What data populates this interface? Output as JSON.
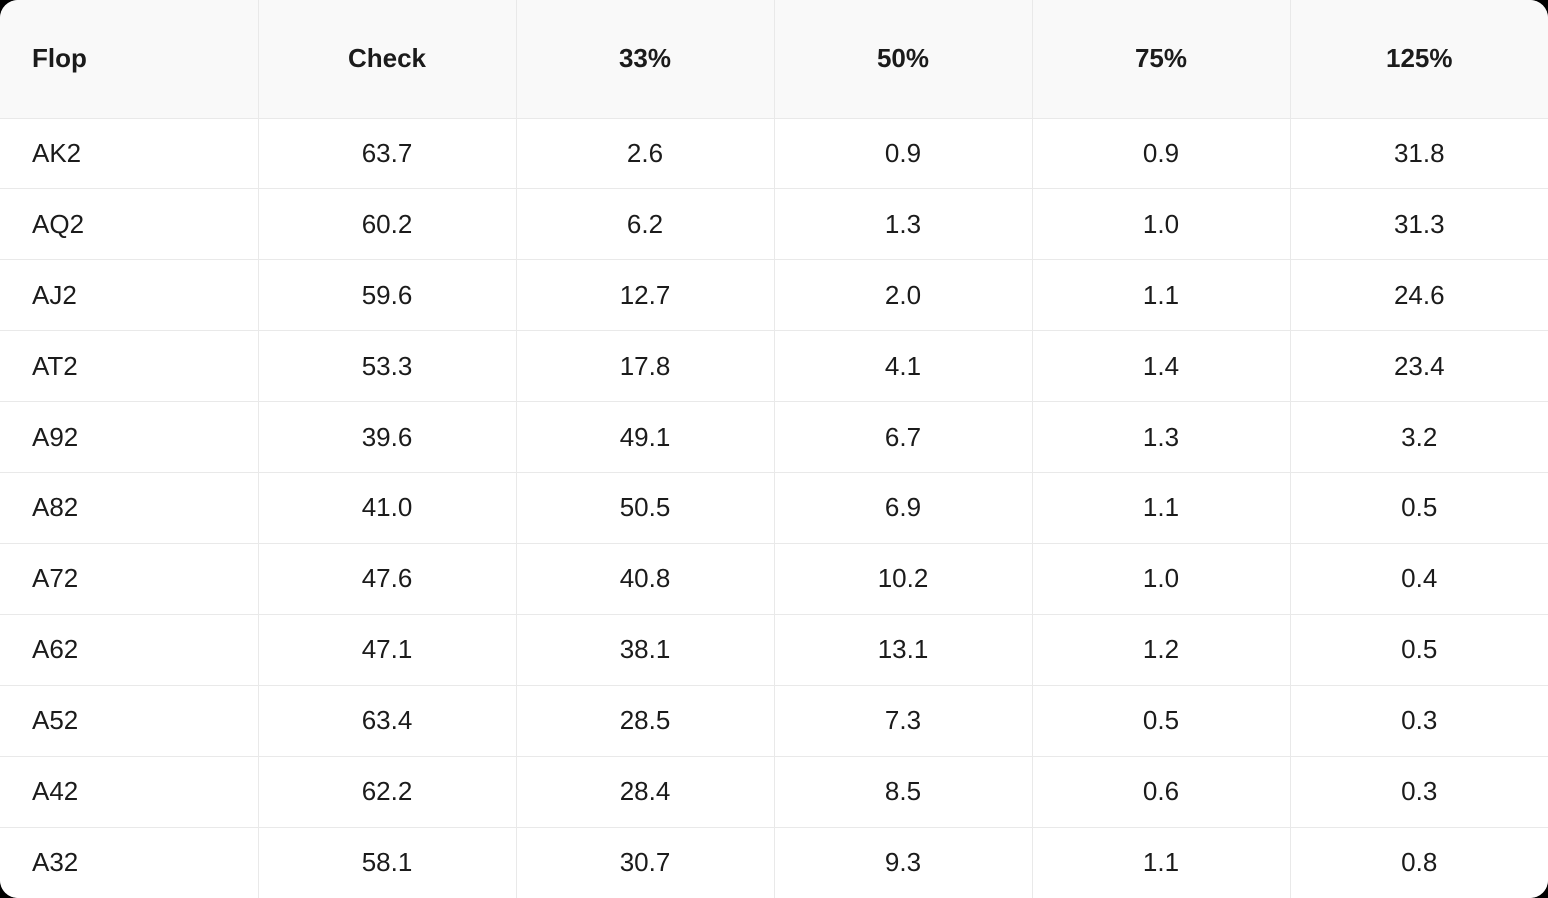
{
  "chart_data": {
    "type": "table",
    "columns": [
      "Flop",
      "Check",
      "33%",
      "50%",
      "75%",
      "125%"
    ],
    "rows": [
      {
        "flop": "AK2",
        "values": [
          63.7,
          2.6,
          0.9,
          0.9,
          31.8
        ]
      },
      {
        "flop": "AQ2",
        "values": [
          60.2,
          6.2,
          1.3,
          1.0,
          31.3
        ]
      },
      {
        "flop": "AJ2",
        "values": [
          59.6,
          12.7,
          2.0,
          1.1,
          24.6
        ]
      },
      {
        "flop": "AT2",
        "values": [
          53.3,
          17.8,
          4.1,
          1.4,
          23.4
        ]
      },
      {
        "flop": "A92",
        "values": [
          39.6,
          49.1,
          6.7,
          1.3,
          3.2
        ]
      },
      {
        "flop": "A82",
        "values": [
          41.0,
          50.5,
          6.9,
          1.1,
          0.5
        ]
      },
      {
        "flop": "A72",
        "values": [
          47.6,
          40.8,
          10.2,
          1.0,
          0.4
        ]
      },
      {
        "flop": "A62",
        "values": [
          47.1,
          38.1,
          13.1,
          1.2,
          0.5
        ]
      },
      {
        "flop": "A52",
        "values": [
          63.4,
          28.5,
          7.3,
          0.5,
          0.3
        ]
      },
      {
        "flop": "A42",
        "values": [
          62.2,
          28.4,
          8.5,
          0.6,
          0.3
        ]
      },
      {
        "flop": "A32",
        "values": [
          58.1,
          30.7,
          9.3,
          1.1,
          0.8
        ]
      }
    ],
    "value_decimals": 1,
    "layout": {
      "grid": "on",
      "header_align": "center",
      "first_column_align": "left",
      "value_align": "center"
    }
  },
  "colors": {
    "header_bg": "#f9f9f9",
    "row_bg": "#ffffff",
    "border": "#e9e9e9",
    "text": "#1b1b1b"
  }
}
